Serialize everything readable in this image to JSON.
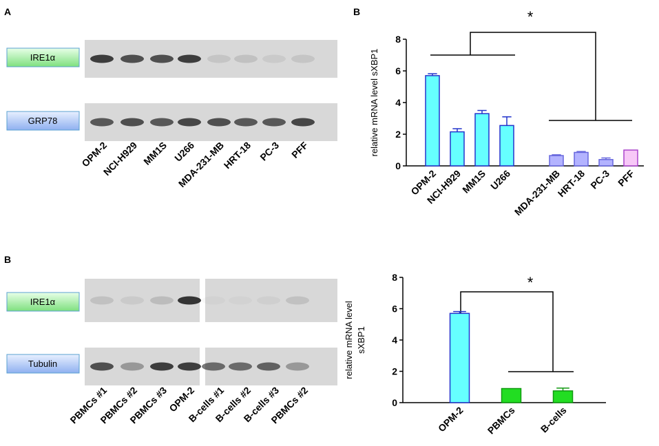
{
  "panel_letters": [
    "A",
    "B",
    "B"
  ],
  "blots": [
    {
      "rows": [
        "IRE1α",
        "GRP78"
      ],
      "lanes": [
        "OPM-2",
        "NCI-H929",
        "MM1S",
        "U266",
        "MDA-231-MB",
        "HRT-18",
        "PC-3",
        "PFF"
      ]
    },
    {
      "rows": [
        "IRE1α",
        "Tubulin"
      ],
      "lanes": [
        "PBMCs #1",
        "PBMCs #2",
        "PBMCs #3",
        "OPM-2",
        "B-cells #1",
        "B-cells #2",
        "B-cells #3",
        "PBMCs #2"
      ]
    }
  ],
  "chart_data": [
    {
      "type": "bar",
      "ylabel": [
        "relative mRNA level sXBP1"
      ],
      "annotation": "*",
      "categories": [
        "OPM-2",
        "NCI-H929",
        "MM1S",
        "U266",
        null,
        "MDA-231-MB",
        "HRT-18",
        "PC-3",
        "PFF"
      ],
      "values": [
        5.7,
        2.15,
        3.3,
        2.55,
        null,
        0.65,
        0.85,
        0.4,
        1.0
      ],
      "errors": [
        0.12,
        0.2,
        0.2,
        0.55,
        null,
        0.05,
        0.06,
        0.1,
        0
      ],
      "colors": [
        "#66ffff",
        "#66ffff",
        "#66ffff",
        "#66ffff",
        null,
        "#b3b3ff",
        "#b3b3ff",
        "#b3b3ff",
        "#f7c8f7"
      ],
      "ylim": [
        0,
        8
      ],
      "yticks": [
        0,
        2,
        4,
        6,
        8
      ]
    },
    {
      "type": "bar",
      "ylabel": [
        "relative mRNA level",
        "sXBP1"
      ],
      "annotation": "*",
      "categories": [
        "OPM-2",
        "PBMCs",
        "B-cells"
      ],
      "values": [
        5.7,
        0.9,
        0.75
      ],
      "errors": [
        0.12,
        0,
        0.18
      ],
      "colors": [
        "#66ffff",
        "#22dd22",
        "#22dd22"
      ],
      "ylim": [
        0,
        8
      ],
      "yticks": [
        0,
        2,
        4,
        6,
        8
      ]
    }
  ]
}
